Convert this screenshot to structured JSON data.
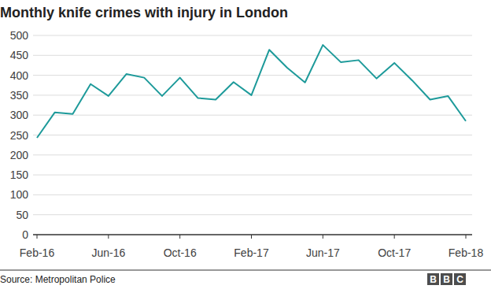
{
  "chart_data": {
    "type": "line",
    "title": "Monthly knife crimes with injury in London",
    "source": "Source: Metropolitan Police",
    "logo": "BBC",
    "categories": [
      "Feb-16",
      null,
      null,
      null,
      "Jun-16",
      null,
      null,
      null,
      "Oct-16",
      null,
      null,
      null,
      "Feb-17",
      null,
      null,
      null,
      "Jun-17",
      null,
      null,
      null,
      "Oct-17",
      null,
      null,
      null,
      "Feb-18"
    ],
    "values": [
      243,
      307,
      303,
      378,
      348,
      403,
      394,
      348,
      394,
      343,
      339,
      383,
      350,
      464,
      419,
      382,
      476,
      433,
      438,
      392,
      431,
      387,
      339,
      348,
      285
    ],
    "color": "#1d9a9a",
    "ylim": [
      0,
      500
    ],
    "yticks": [
      0,
      50,
      100,
      150,
      200,
      250,
      300,
      350,
      400,
      450,
      500
    ],
    "grid": true
  }
}
